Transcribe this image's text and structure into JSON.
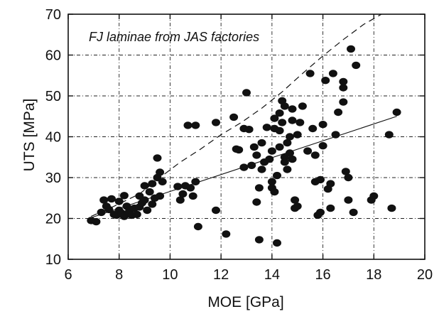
{
  "chart_data": {
    "type": "scatter",
    "annotation": "FJ laminae from JAS factories",
    "xlabel": "MOE [GPa]",
    "ylabel": "UTS [MPa]",
    "xlim": [
      6,
      20
    ],
    "ylim": [
      10,
      70
    ],
    "xticks": [
      6,
      8,
      10,
      12,
      14,
      16,
      18,
      20
    ],
    "yticks": [
      10,
      20,
      30,
      40,
      50,
      60,
      70
    ],
    "grid": true,
    "legend": "none",
    "points": [
      [
        6.9,
        19.5
      ],
      [
        7.1,
        19.2
      ],
      [
        7.3,
        21.5
      ],
      [
        7.4,
        24.5
      ],
      [
        7.5,
        23.0
      ],
      [
        7.6,
        22.2
      ],
      [
        7.7,
        24.8
      ],
      [
        7.8,
        21.0
      ],
      [
        7.9,
        20.8
      ],
      [
        8.0,
        22.0
      ],
      [
        8.0,
        24.2
      ],
      [
        8.1,
        21.3
      ],
      [
        8.2,
        20.5
      ],
      [
        8.2,
        25.6
      ],
      [
        8.3,
        23.0
      ],
      [
        8.4,
        21.8
      ],
      [
        8.5,
        20.8
      ],
      [
        8.6,
        22.5
      ],
      [
        8.7,
        21.0
      ],
      [
        8.8,
        25.5
      ],
      [
        8.8,
        22.8
      ],
      [
        8.9,
        23.8
      ],
      [
        9.0,
        28.0
      ],
      [
        9.0,
        24.5
      ],
      [
        9.1,
        22.0
      ],
      [
        9.2,
        26.5
      ],
      [
        9.3,
        23.5
      ],
      [
        9.3,
        28.5
      ],
      [
        9.4,
        25.0
      ],
      [
        9.5,
        30.0
      ],
      [
        9.5,
        34.8
      ],
      [
        9.6,
        31.3
      ],
      [
        9.6,
        25.5
      ],
      [
        9.7,
        29.0
      ],
      [
        10.3,
        27.8
      ],
      [
        10.4,
        24.5
      ],
      [
        10.5,
        26.0
      ],
      [
        10.6,
        28.0
      ],
      [
        10.7,
        42.8
      ],
      [
        10.8,
        27.5
      ],
      [
        10.9,
        25.5
      ],
      [
        11.0,
        42.8
      ],
      [
        11.0,
        29.0
      ],
      [
        11.1,
        18.0
      ],
      [
        11.8,
        22.0
      ],
      [
        11.8,
        43.5
      ],
      [
        12.2,
        16.2
      ],
      [
        12.5,
        44.8
      ],
      [
        12.6,
        37.0
      ],
      [
        12.7,
        36.8
      ],
      [
        12.9,
        42.0
      ],
      [
        12.9,
        32.5
      ],
      [
        13.0,
        50.8
      ],
      [
        13.1,
        41.8
      ],
      [
        13.2,
        33.0
      ],
      [
        13.3,
        37.5
      ],
      [
        13.4,
        24.0
      ],
      [
        13.4,
        35.5
      ],
      [
        13.5,
        14.8
      ],
      [
        13.5,
        27.5
      ],
      [
        13.6,
        32.0
      ],
      [
        13.6,
        38.5
      ],
      [
        13.7,
        33.8
      ],
      [
        13.8,
        42.3
      ],
      [
        13.9,
        34.5
      ],
      [
        14.0,
        27.5
      ],
      [
        14.0,
        29.0
      ],
      [
        14.0,
        36.5
      ],
      [
        14.1,
        42.0
      ],
      [
        14.1,
        26.5
      ],
      [
        14.1,
        44.5
      ],
      [
        14.2,
        14.0
      ],
      [
        14.2,
        30.5
      ],
      [
        14.3,
        37.5
      ],
      [
        14.3,
        45.8
      ],
      [
        14.3,
        41.5
      ],
      [
        14.4,
        48.8
      ],
      [
        14.4,
        43.5
      ],
      [
        14.5,
        35.0
      ],
      [
        14.5,
        33.8
      ],
      [
        14.5,
        47.5
      ],
      [
        14.6,
        32.0
      ],
      [
        14.6,
        38.5
      ],
      [
        14.7,
        40.0
      ],
      [
        14.7,
        36.0
      ],
      [
        14.8,
        34.5
      ],
      [
        14.8,
        46.8
      ],
      [
        14.8,
        44.0
      ],
      [
        14.9,
        24.5
      ],
      [
        14.9,
        22.5
      ],
      [
        15.0,
        23.0
      ],
      [
        15.0,
        40.5
      ],
      [
        15.1,
        43.5
      ],
      [
        15.2,
        47.5
      ],
      [
        15.4,
        36.5
      ],
      [
        15.5,
        55.5
      ],
      [
        15.6,
        42.0
      ],
      [
        15.7,
        35.5
      ],
      [
        15.7,
        29.0
      ],
      [
        15.8,
        20.8
      ],
      [
        15.9,
        21.5
      ],
      [
        15.9,
        29.5
      ],
      [
        16.0,
        37.8
      ],
      [
        16.0,
        43.0
      ],
      [
        16.1,
        53.8
      ],
      [
        16.2,
        27.2
      ],
      [
        16.3,
        28.5
      ],
      [
        16.3,
        22.5
      ],
      [
        16.4,
        55.5
      ],
      [
        16.5,
        40.5
      ],
      [
        16.6,
        46.0
      ],
      [
        16.8,
        48.5
      ],
      [
        16.8,
        52.0
      ],
      [
        16.8,
        53.5
      ],
      [
        16.9,
        31.5
      ],
      [
        17.0,
        30.0
      ],
      [
        17.0,
        24.5
      ],
      [
        17.1,
        61.5
      ],
      [
        17.2,
        21.5
      ],
      [
        17.3,
        57.5
      ],
      [
        17.9,
        24.5
      ],
      [
        18.0,
        25.5
      ],
      [
        18.6,
        40.5
      ],
      [
        18.7,
        22.5
      ],
      [
        18.9,
        46.0
      ]
    ],
    "fit_line": {
      "x": [
        6.9,
        18.9
      ],
      "y": [
        20.2,
        45.0
      ]
    },
    "upper_bound": {
      "x": [
        6.9,
        7.8,
        8.8,
        9.6,
        10.4,
        11.2,
        12.0,
        12.8,
        13.6,
        14.4,
        15.2,
        16.0,
        16.8,
        17.6,
        18.3
      ],
      "y": [
        20.5,
        23.0,
        26.0,
        30.0,
        33.8,
        37.0,
        40.5,
        43.5,
        47.0,
        51.0,
        55.5,
        59.8,
        63.8,
        67.5,
        70.0
      ]
    }
  }
}
